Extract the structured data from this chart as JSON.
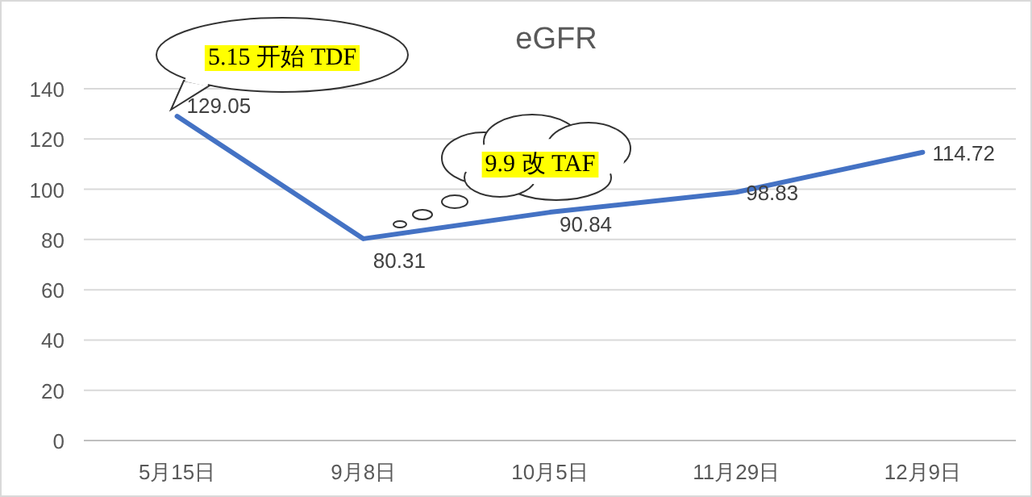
{
  "chart_data": {
    "type": "line",
    "title": "eGFR",
    "categories": [
      "5月15日",
      "9月8日",
      "10月5日",
      "11月29日",
      "12月9日"
    ],
    "series": [
      {
        "color": "#4472c4",
        "values": [
          129.05,
          80.31,
          90.84,
          98.83,
          114.72
        ]
      }
    ],
    "ylim": [
      0,
      140
    ],
    "yticks": [
      0,
      20,
      40,
      60,
      80,
      100,
      120,
      140
    ],
    "grid": "y",
    "data_labels": true,
    "marker": "none",
    "line_style": "solid",
    "annotations": [
      "5.15 开始 TDF",
      "9.9 改 TAF"
    ]
  }
}
